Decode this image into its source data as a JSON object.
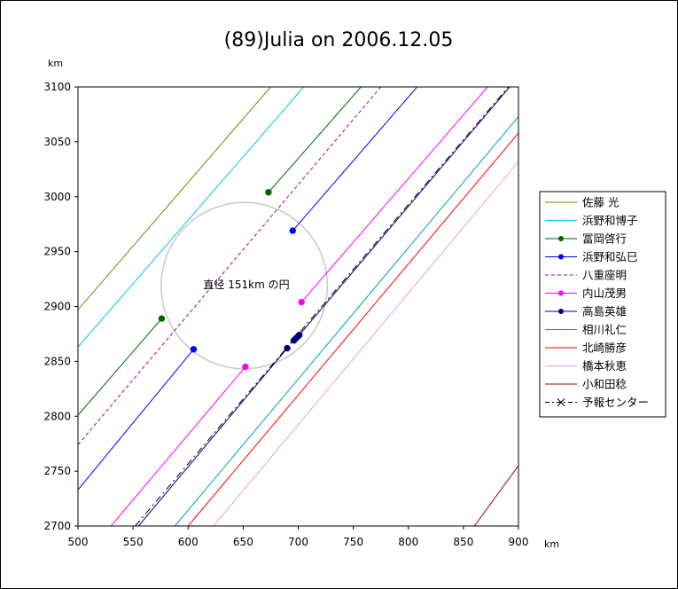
{
  "chart_data": {
    "type": "line",
    "title": "(89)Julia on 2006.12.05",
    "x_unit": "km",
    "y_unit": "km",
    "xlim": [
      500,
      900
    ],
    "ylim": [
      2700,
      3100
    ],
    "x_ticks": [
      500,
      550,
      600,
      650,
      700,
      750,
      800,
      850,
      900
    ],
    "y_ticks": [
      2700,
      2750,
      2800,
      2850,
      2900,
      2950,
      3000,
      3050,
      3100
    ],
    "grid": false,
    "legend_position": "right",
    "circle": {
      "cx": 651,
      "cy": 2919,
      "diameter": 151,
      "label": "直径 151km の円",
      "color": "#c8c8c8"
    },
    "series": [
      {
        "name": "佐藤 光",
        "color": "#808000",
        "style": "solid",
        "marker": false,
        "lines": [
          [
            [
              500,
              2897
            ],
            [
              675,
              3100
            ]
          ]
        ],
        "points": []
      },
      {
        "name": "浜野和博子",
        "color": "#00c8e6",
        "style": "solid",
        "marker": false,
        "lines": [
          [
            [
              500,
              2863
            ],
            [
              705,
              3100
            ]
          ]
        ],
        "points": []
      },
      {
        "name": "冨岡啓行",
        "color": "#006400",
        "style": "solid",
        "marker": true,
        "lines": [
          [
            [
              500,
              2801
            ],
            [
              576,
              2889
            ]
          ],
          [
            [
              673,
              3004
            ],
            [
              757,
              3100
            ]
          ]
        ],
        "points": [
          [
            576,
            2889
          ],
          [
            673,
            3004
          ]
        ]
      },
      {
        "name": "浜野和弘巳",
        "color": "#0000ff",
        "style": "solid",
        "marker": true,
        "lines": [
          [
            [
              500,
              2733
            ],
            [
              605,
              2861
            ]
          ],
          [
            [
              695,
              2969
            ],
            [
              808,
              3100
            ]
          ]
        ],
        "points": [
          [
            605,
            2861
          ],
          [
            695,
            2969
          ]
        ]
      },
      {
        "name": "八重座明",
        "color": "#a000a0",
        "style": "dash",
        "marker": false,
        "lines": [
          [
            [
              500,
              2774
            ],
            [
              775,
              3100
            ]
          ]
        ],
        "points": []
      },
      {
        "name": "内山茂男",
        "color": "#ff00ff",
        "style": "solid",
        "marker": true,
        "lines": [
          [
            [
              530,
              2700
            ],
            [
              652,
              2845
            ]
          ],
          [
            [
              703,
              2904
            ],
            [
              872,
              3100
            ]
          ]
        ],
        "points": [
          [
            652,
            2845
          ],
          [
            703,
            2904
          ]
        ]
      },
      {
        "name": "高島英雄",
        "color": "#000080",
        "style": "solid",
        "marker": true,
        "lines": [
          [
            [
              555,
              2700
            ],
            [
              690,
              2862
            ]
          ],
          [
            [
              701,
              2874
            ],
            [
              892,
              3100
            ]
          ]
        ],
        "points": [
          [
            690,
            2862
          ],
          [
            696,
            2869
          ],
          [
            698,
            2871
          ],
          [
            700,
            2873
          ],
          [
            701,
            2874
          ]
        ]
      },
      {
        "name": "相川礼仁",
        "color": "#00a0b4",
        "style": "solid",
        "marker": false,
        "lines": [
          [
            [
              588,
              2700
            ],
            [
              900,
              3073
            ]
          ]
        ],
        "points": []
      },
      {
        "name": "北崎勝彦",
        "color": "#ff0000",
        "style": "solid",
        "marker": false,
        "lines": [
          [
            [
              600,
              2700
            ],
            [
              900,
              3058
            ]
          ]
        ],
        "points": []
      },
      {
        "name": "橋本秋恵",
        "color": "#e6a0e6",
        "style": "solid",
        "marker": false,
        "lines": [
          [
            [
              623,
              2700
            ],
            [
              900,
              3032
            ]
          ]
        ],
        "points": []
      },
      {
        "name": "小和田稔",
        "color": "#a00000",
        "style": "solid",
        "marker": false,
        "lines": [
          [
            [
              860,
              2700
            ],
            [
              900,
              2755
            ]
          ]
        ],
        "points": []
      },
      {
        "name": "予報センター",
        "color": "#000000",
        "style": "dashdot",
        "marker": "x",
        "lines": [
          [
            [
              552,
              2700
            ],
            [
              895,
              3105
            ]
          ]
        ],
        "points": []
      }
    ]
  }
}
